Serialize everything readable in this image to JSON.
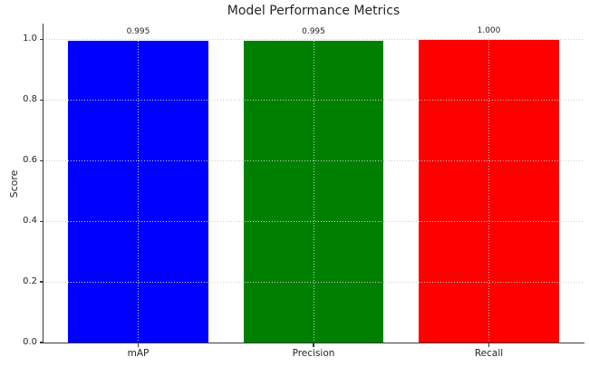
{
  "chart_data": {
    "type": "bar",
    "title": "Model Performance Metrics",
    "xlabel": "",
    "ylabel": "Score",
    "categories": [
      "mAP",
      "Precision",
      "Recall"
    ],
    "values": [
      0.995,
      0.995,
      1.0
    ],
    "value_labels": [
      "0.995",
      "0.995",
      "1.000"
    ],
    "bar_colors": [
      "#0000ff",
      "#008000",
      "#ff0000"
    ],
    "ylim": [
      0,
      1.05
    ],
    "xlim": [
      -0.54,
      2.54
    ],
    "bar_width": 0.8,
    "yticks": [
      0.0,
      0.2,
      0.4,
      0.6,
      0.8,
      1.0
    ],
    "ytick_labels": [
      "0.0",
      "0.2",
      "0.4",
      "0.6",
      "0.8",
      "1.0"
    ],
    "grid": "dotted, horizontal and vertical, drawn above bars",
    "grid_color": "#cbcbcb",
    "legend": "none",
    "background": "#ffffff",
    "text_color": "#262626"
  }
}
